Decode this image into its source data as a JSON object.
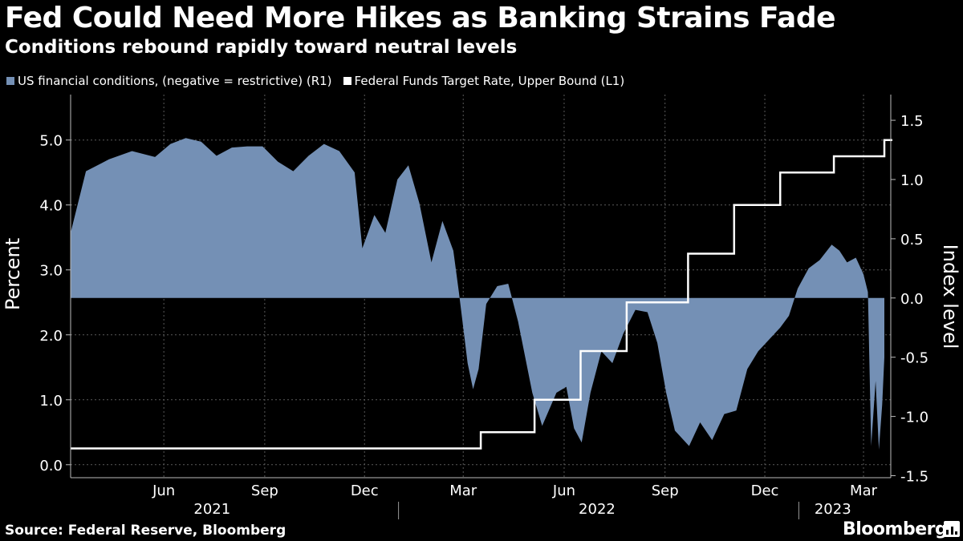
{
  "chart_data": {
    "type": "area+line",
    "title": "Fed Could Need More Hikes as Banking Strains Fade",
    "subtitle": "Conditions rebound rapidly toward neutral levels",
    "legend_placement": "top-left",
    "grid": true,
    "x_range": [
      "2021-03-08",
      "2023-03-20"
    ],
    "month_labels": [
      {
        "label": "Jun",
        "date": "2021-06-01"
      },
      {
        "label": "Sep",
        "date": "2021-09-01"
      },
      {
        "label": "Dec",
        "date": "2021-12-01"
      },
      {
        "label": "Mar",
        "date": "2022-03-01"
      },
      {
        "label": "Jun",
        "date": "2022-06-01"
      },
      {
        "label": "Sep",
        "date": "2022-09-01"
      },
      {
        "label": "Dec",
        "date": "2022-12-01"
      },
      {
        "label": "Mar",
        "date": "2023-03-01"
      }
    ],
    "year_labels": [
      {
        "label": "2021",
        "date": "2021-07-15"
      },
      {
        "label": "2022",
        "date": "2022-07-01"
      },
      {
        "label": "2023",
        "date": "2023-02-01"
      }
    ],
    "year_dividers": [
      "2022-01-01",
      "2023-01-01"
    ],
    "left_axis": {
      "label": "Percent",
      "range": [
        -0.2,
        5.7
      ],
      "ticks": [
        "0.0",
        "1.0",
        "2.0",
        "3.0",
        "4.0",
        "5.0"
      ]
    },
    "right_axis": {
      "label": "Index level",
      "range": [
        -1.517,
        1.717
      ],
      "ticks": [
        "-1.5",
        "-1.0",
        "-0.5",
        "0.0",
        "0.5",
        "1.0",
        "1.5"
      ]
    },
    "series": [
      {
        "name": "US financial conditions, (negative = restrictive) (R1)",
        "axis": "right",
        "style": "area",
        "color": "#7490b5",
        "points": [
          [
            "2021-03-08",
            0.55
          ],
          [
            "2021-03-22",
            1.07
          ],
          [
            "2021-04-12",
            1.17
          ],
          [
            "2021-05-03",
            1.24
          ],
          [
            "2021-05-24",
            1.19
          ],
          [
            "2021-06-07",
            1.3
          ],
          [
            "2021-06-21",
            1.35
          ],
          [
            "2021-07-05",
            1.32
          ],
          [
            "2021-07-19",
            1.2
          ],
          [
            "2021-08-02",
            1.27
          ],
          [
            "2021-08-16",
            1.28
          ],
          [
            "2021-08-30",
            1.28
          ],
          [
            "2021-09-13",
            1.15
          ],
          [
            "2021-09-27",
            1.07
          ],
          [
            "2021-10-11",
            1.2
          ],
          [
            "2021-10-25",
            1.3
          ],
          [
            "2021-11-08",
            1.24
          ],
          [
            "2021-11-22",
            1.06
          ],
          [
            "2021-11-29",
            0.42
          ],
          [
            "2021-12-10",
            0.7
          ],
          [
            "2021-12-20",
            0.55
          ],
          [
            "2021-12-31",
            1.0
          ],
          [
            "2022-01-10",
            1.12
          ],
          [
            "2022-01-20",
            0.8
          ],
          [
            "2022-01-31",
            0.3
          ],
          [
            "2022-02-10",
            0.65
          ],
          [
            "2022-02-20",
            0.4
          ],
          [
            "2022-02-25",
            0.05
          ],
          [
            "2022-03-05",
            -0.55
          ],
          [
            "2022-03-10",
            -0.77
          ],
          [
            "2022-03-15",
            -0.6
          ],
          [
            "2022-03-22",
            -0.05
          ],
          [
            "2022-04-01",
            0.1
          ],
          [
            "2022-04-11",
            0.12
          ],
          [
            "2022-04-20",
            -0.2
          ],
          [
            "2022-05-03",
            -0.8
          ],
          [
            "2022-05-12",
            -1.08
          ],
          [
            "2022-05-25",
            -0.8
          ],
          [
            "2022-06-03",
            -0.75
          ],
          [
            "2022-06-10",
            -1.1
          ],
          [
            "2022-06-17",
            -1.22
          ],
          [
            "2022-06-25",
            -0.8
          ],
          [
            "2022-07-05",
            -0.45
          ],
          [
            "2022-07-15",
            -0.55
          ],
          [
            "2022-07-25",
            -0.3
          ],
          [
            "2022-08-05",
            -0.1
          ],
          [
            "2022-08-16",
            -0.12
          ],
          [
            "2022-08-25",
            -0.38
          ],
          [
            "2022-09-02",
            -0.8
          ],
          [
            "2022-09-10",
            -1.12
          ],
          [
            "2022-09-23",
            -1.25
          ],
          [
            "2022-10-03",
            -1.05
          ],
          [
            "2022-10-14",
            -1.2
          ],
          [
            "2022-10-25",
            -0.98
          ],
          [
            "2022-11-05",
            -0.95
          ],
          [
            "2022-11-15",
            -0.6
          ],
          [
            "2022-11-25",
            -0.45
          ],
          [
            "2022-12-05",
            -0.35
          ],
          [
            "2022-12-15",
            -0.25
          ],
          [
            "2022-12-23",
            -0.15
          ],
          [
            "2022-12-31",
            0.08
          ],
          [
            "2023-01-10",
            0.25
          ],
          [
            "2023-01-20",
            0.32
          ],
          [
            "2023-01-31",
            0.45
          ],
          [
            "2023-02-07",
            0.4
          ],
          [
            "2023-02-14",
            0.3
          ],
          [
            "2023-02-22",
            0.34
          ],
          [
            "2023-03-01",
            0.2
          ],
          [
            "2023-03-05",
            0.05
          ],
          [
            "2023-03-08",
            -1.25
          ],
          [
            "2023-03-12",
            -0.7
          ],
          [
            "2023-03-15",
            -1.28
          ],
          [
            "2023-03-18",
            -0.9
          ],
          [
            "2023-03-20",
            -0.5
          ]
        ]
      },
      {
        "name": "Federal Funds Target Rate, Upper Bound (L1)",
        "axis": "left",
        "style": "step",
        "color": "#ffffff",
        "points": [
          [
            "2021-03-08",
            0.25
          ],
          [
            "2022-03-17",
            0.5
          ],
          [
            "2022-05-05",
            1.0
          ],
          [
            "2022-06-16",
            1.75
          ],
          [
            "2022-07-28",
            2.5
          ],
          [
            "2022-09-22",
            3.25
          ],
          [
            "2022-11-03",
            4.0
          ],
          [
            "2022-12-15",
            4.5
          ],
          [
            "2023-02-02",
            4.75
          ],
          [
            "2023-03-20",
            5.0
          ]
        ]
      }
    ]
  },
  "source": "Source: Federal Reserve, Bloomberg",
  "brand": "Bloomberg"
}
